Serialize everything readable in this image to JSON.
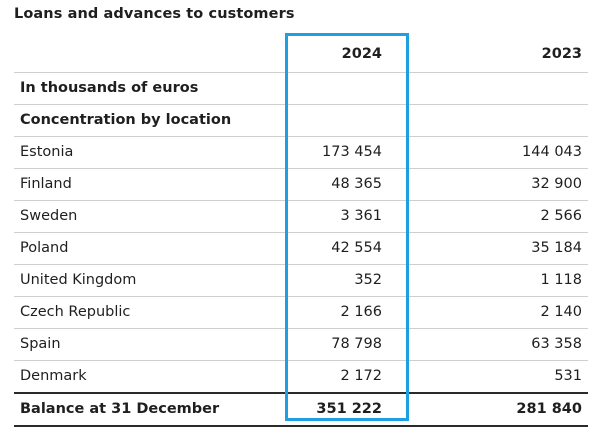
{
  "title": "Loans and advances to customers",
  "columns": {
    "y2024": "2024",
    "y2023": "2023"
  },
  "unit_row": "In thousands of euros",
  "section_row": "Concentration by location",
  "rows": [
    {
      "label": "Estonia",
      "y2024": "173 454",
      "y2023": "144 043"
    },
    {
      "label": "Finland",
      "y2024": "48 365",
      "y2023": "32 900"
    },
    {
      "label": "Sweden",
      "y2024": "3 361",
      "y2023": "2 566"
    },
    {
      "label": "Poland",
      "y2024": "42 554",
      "y2023": "35 184"
    },
    {
      "label": "United Kingdom",
      "y2024": "352",
      "y2023": "1 118"
    },
    {
      "label": "Czech Republic",
      "y2024": "2 166",
      "y2023": "2 140"
    },
    {
      "label": "Spain",
      "y2024": "78 798",
      "y2023": "63 358"
    },
    {
      "label": "Denmark",
      "y2024": "2 172",
      "y2023": "531"
    }
  ],
  "total": {
    "label": "Balance at 31 December",
    "y2024": "351 222",
    "y2023": "281 840"
  },
  "colors": {
    "highlight": "#1e9fe0",
    "rule": "#2a2a2a",
    "divider": "#cfcfcf"
  }
}
